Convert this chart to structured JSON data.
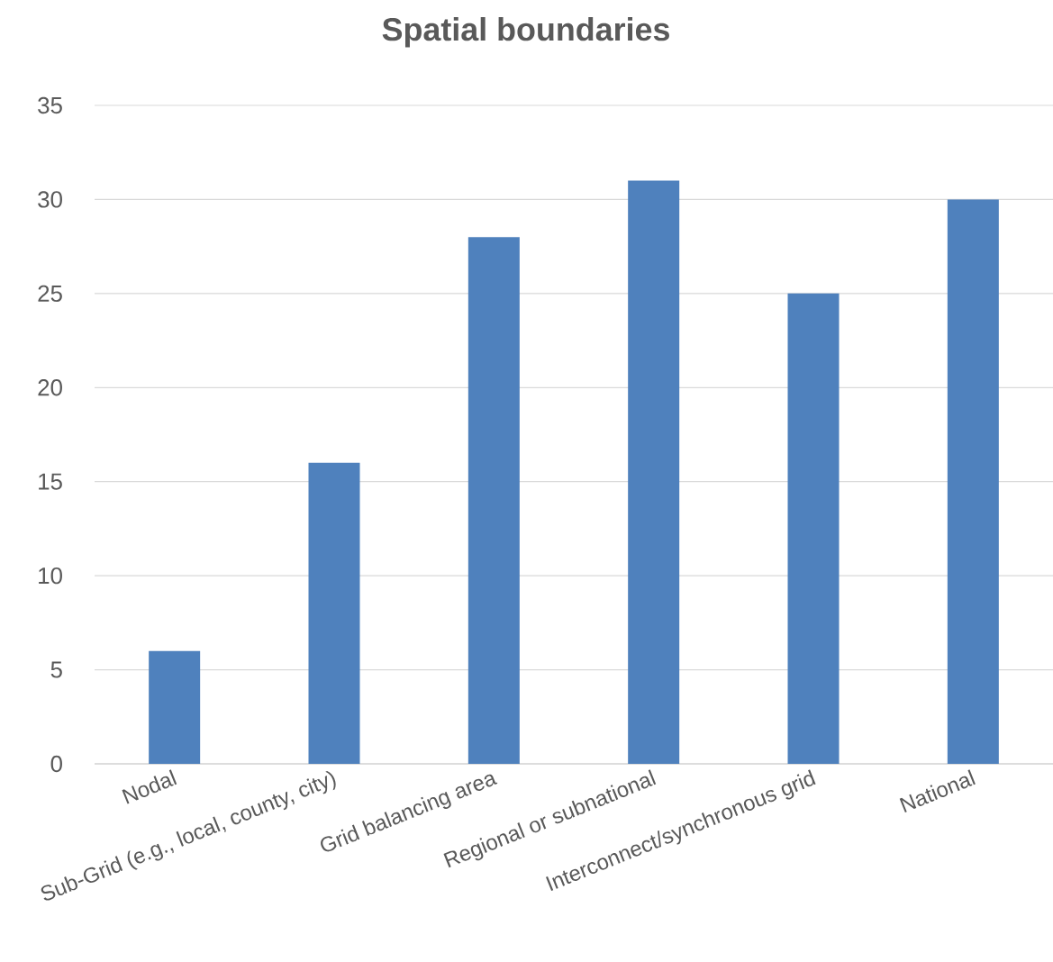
{
  "chart_data": {
    "type": "bar",
    "title": "Spatial boundaries",
    "categories": [
      "Nodal",
      "Sub-Grid (e.g., local, county, city)",
      "Grid balancing area",
      "Regional or subnational",
      "Interconnect/synchronous grid",
      "National"
    ],
    "values": [
      6,
      16,
      28,
      31,
      25,
      30
    ],
    "color": "#4f81bd",
    "ylim": [
      0,
      35
    ],
    "yticks": [
      0,
      5,
      10,
      15,
      20,
      25,
      30,
      35
    ],
    "grid": "y"
  }
}
